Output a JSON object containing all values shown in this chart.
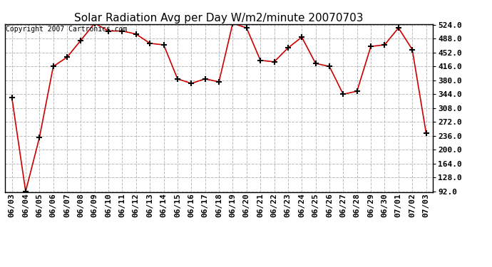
{
  "title": "Solar Radiation Avg per Day W/m2/minute 20070703",
  "copyright_text": "Copyright 2007 Cartronics.com",
  "x_labels": [
    "06/03",
    "06/04",
    "06/05",
    "06/06",
    "06/07",
    "06/08",
    "06/09",
    "06/10",
    "06/11",
    "06/12",
    "06/13",
    "06/14",
    "06/15",
    "06/16",
    "06/17",
    "06/18",
    "06/19",
    "06/20",
    "06/21",
    "06/22",
    "06/23",
    "06/24",
    "06/25",
    "06/26",
    "06/27",
    "06/28",
    "06/29",
    "06/30",
    "07/01",
    "07/02",
    "07/03"
  ],
  "y_values": [
    336,
    92,
    232,
    416,
    440,
    484,
    528,
    508,
    508,
    500,
    476,
    472,
    384,
    372,
    384,
    376,
    528,
    516,
    432,
    428,
    464,
    492,
    424,
    416,
    344,
    352,
    468,
    472,
    516,
    460,
    244
  ],
  "line_color": "#cc0000",
  "marker": "+",
  "marker_size": 6,
  "marker_color": "#000000",
  "bg_color": "#ffffff",
  "plot_bg_color": "#ffffff",
  "grid_color": "#bbbbbb",
  "grid_style": "--",
  "ylim_min": 92.0,
  "ylim_max": 524.0,
  "ytick_step": 36,
  "title_fontsize": 11,
  "tick_fontsize": 8,
  "copyright_fontsize": 7
}
